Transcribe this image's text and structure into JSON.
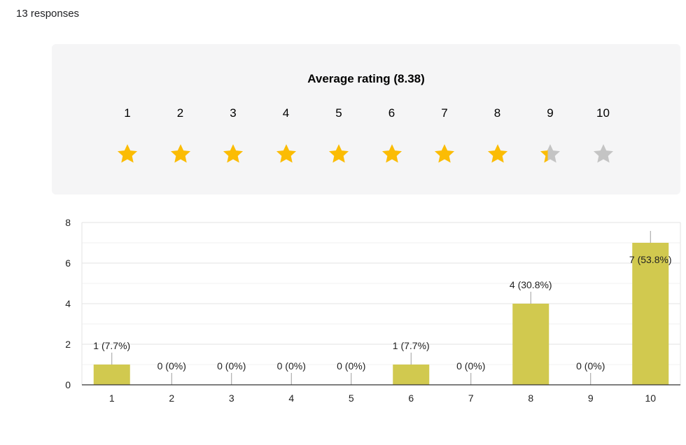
{
  "responses_text": "13 responses",
  "rating": {
    "title": "Average rating (8.38)",
    "average": 8.38,
    "max": 10,
    "labels": [
      "1",
      "2",
      "3",
      "4",
      "5",
      "6",
      "7",
      "8",
      "9",
      "10"
    ],
    "star_color_filled": "#fbbc04",
    "star_color_empty": "#c4c4c4",
    "star_icon": "star-icon"
  },
  "chart_data": {
    "type": "bar",
    "categories": [
      "1",
      "2",
      "3",
      "4",
      "5",
      "6",
      "7",
      "8",
      "9",
      "10"
    ],
    "values": [
      1,
      0,
      0,
      0,
      0,
      1,
      0,
      4,
      0,
      7
    ],
    "data_labels": [
      "1 (7.7%)",
      "0 (0%)",
      "0 (0%)",
      "0 (0%)",
      "0 (0%)",
      "1 (7.7%)",
      "0 (0%)",
      "4 (30.8%)",
      "0 (0%)",
      "7 (53.8%)"
    ],
    "ylim": [
      0,
      8
    ],
    "yticks": [
      "0",
      "2",
      "4",
      "6",
      "8"
    ],
    "grid": true,
    "bar_color": "#d1c94f"
  }
}
